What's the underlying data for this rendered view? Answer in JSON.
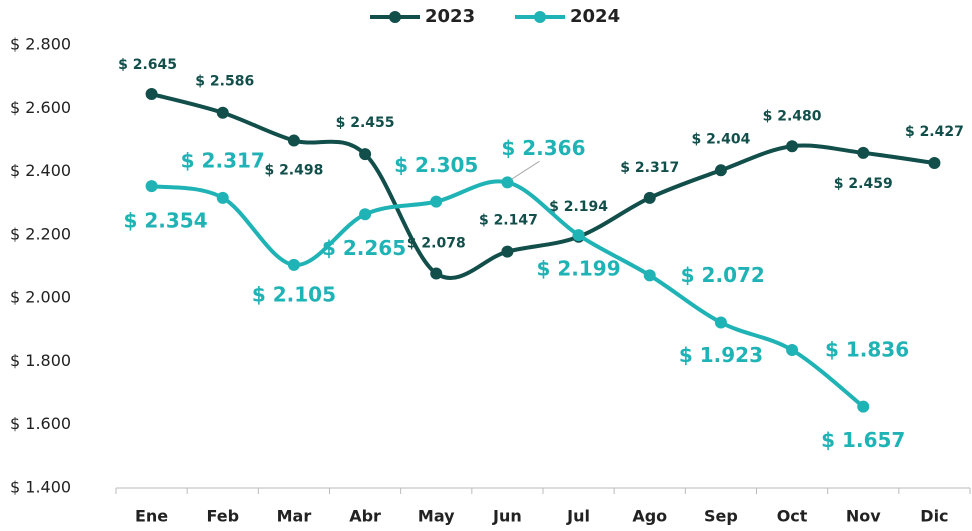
{
  "chart_data": {
    "type": "line",
    "categories": [
      "Ene",
      "Feb",
      "Mar",
      "Abr",
      "May",
      "Jun",
      "Jul",
      "Ago",
      "Sep",
      "Oct",
      "Nov",
      "Dic"
    ],
    "series": [
      {
        "name": "2023",
        "color": "#124f4b",
        "values": [
          2645,
          2586,
          2498,
          2455,
          2078,
          2147,
          2194,
          2317,
          2404,
          2480,
          2459,
          2427
        ],
        "value_labels": [
          "$ 2.645",
          "$ 2.586",
          "$ 2.498",
          "$ 2.455",
          "$ 2.078",
          "$ 2.147",
          "$ 2.194",
          "$ 2.317",
          "$ 2.404",
          "$ 2.480",
          "$ 2.459",
          "$ 2.427"
        ]
      },
      {
        "name": "2024",
        "color": "#1fb3b6",
        "values": [
          2354,
          2317,
          2105,
          2265,
          2305,
          2366,
          2199,
          2072,
          1923,
          1836,
          1657,
          null
        ],
        "value_labels": [
          "$ 2.354",
          "$ 2.317",
          "$ 2.105",
          "$ 2.265",
          "$ 2.305",
          "$ 2.366",
          "$ 2.199",
          "$ 2.072",
          "$ 1.923",
          "$ 1.836",
          "$ 1.657",
          null
        ]
      }
    ],
    "ylim": [
      1400,
      2800
    ],
    "yticks": [
      {
        "value": 1400,
        "label": "$ 1.400"
      },
      {
        "value": 1600,
        "label": "$ 1.600"
      },
      {
        "value": 1800,
        "label": "$ 1.800"
      },
      {
        "value": 2000,
        "label": "$ 2.000"
      },
      {
        "value": 2200,
        "label": "$ 2.200"
      },
      {
        "value": 2400,
        "label": "$ 2.400"
      },
      {
        "value": 2600,
        "label": "$ 2.600"
      },
      {
        "value": 2800,
        "label": "$ 2.800"
      }
    ],
    "grid": false,
    "legend": "top",
    "smooth": true
  }
}
